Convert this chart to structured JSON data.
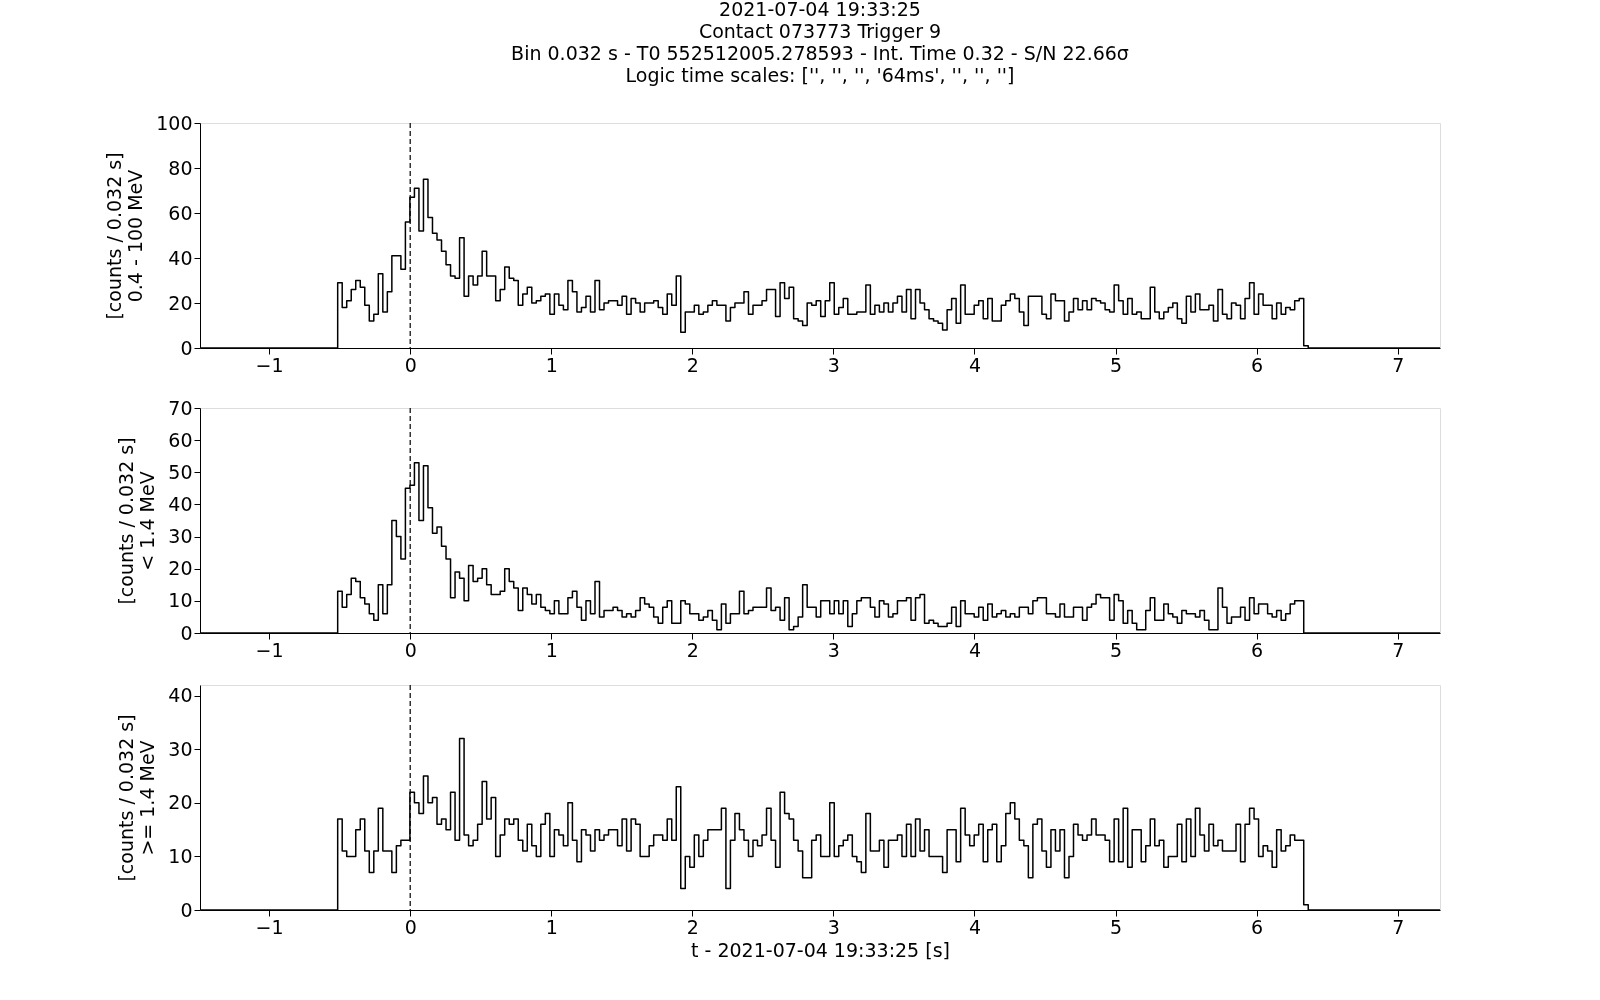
{
  "chart_data": [
    {
      "type": "step",
      "title": "2021-07-04 19:33:25\nContact 073773   Trigger 9\nBin 0.032 s -  T0 552512005.278593 - Int. Time 0.32 - S/N 22.66σ\nLogic time scales: ['', '', '', '64ms', '', '', '']",
      "ylabel": "[counts / 0.032 s]\n0.4 - 100 MeV",
      "xlim": [
        -1.49,
        7.3
      ],
      "xticks": [
        -1,
        0,
        1,
        2,
        3,
        4,
        5,
        6,
        7
      ],
      "ylim": [
        0,
        100
      ],
      "yticks": [
        0,
        20,
        40,
        60,
        80,
        100
      ],
      "grid": false,
      "line_style": "solid",
      "marker": "none",
      "x": [
        -1.49,
        -0.514,
        -0.482,
        -0.45,
        -0.418,
        -0.386,
        -0.354,
        -0.322,
        -0.29,
        -0.258,
        -0.226,
        -0.194,
        -0.162,
        -0.13,
        -0.098,
        -0.066,
        -0.034,
        -0.002,
        0.03,
        0.062,
        0.094,
        0.126,
        0.158,
        0.19,
        0.222,
        0.254,
        0.286,
        0.318,
        0.35,
        0.382,
        0.414,
        0.446,
        0.478,
        0.51,
        0.542,
        0.574,
        0.606,
        0.638,
        0.67,
        0.702,
        0.734,
        0.766,
        0.798,
        0.83,
        0.862,
        0.894,
        0.926,
        0.958,
        0.99,
        1.022,
        1.054,
        1.086,
        1.118,
        1.15,
        1.182,
        1.214,
        1.246,
        1.278,
        1.31,
        1.342,
        1.374,
        1.406,
        1.438,
        1.47,
        1.502,
        1.534,
        1.566,
        1.598,
        1.63,
        1.662,
        1.694,
        1.726,
        1.758,
        1.79,
        1.822,
        1.854,
        1.886,
        1.918,
        1.95,
        1.982,
        2.014,
        2.046,
        2.078,
        2.11,
        2.142,
        2.174,
        2.206,
        2.238,
        2.27,
        2.302,
        2.334,
        2.366,
        2.398,
        2.43,
        2.462,
        2.494,
        2.526,
        2.558,
        2.59,
        2.622,
        2.654,
        2.686,
        2.718,
        2.75,
        2.782,
        2.814,
        2.846,
        2.878,
        2.91,
        2.942,
        2.974,
        3.006,
        3.038,
        3.07,
        3.102,
        3.134,
        3.166,
        3.198,
        3.23,
        3.262,
        3.294,
        3.326,
        3.358,
        3.39,
        3.422,
        3.454,
        3.486,
        3.518,
        3.55,
        3.582,
        3.614,
        3.646,
        3.678,
        3.71,
        3.742,
        3.774,
        3.806,
        3.838,
        3.87,
        3.902,
        3.934,
        3.966,
        3.998,
        4.03,
        4.062,
        4.094,
        4.126,
        4.158,
        4.19,
        4.222,
        4.254,
        4.286,
        4.318,
        4.35,
        4.382,
        4.414,
        4.446,
        4.478,
        4.51,
        4.542,
        4.574,
        4.606,
        4.638,
        4.67,
        4.702,
        4.734,
        4.766,
        4.798,
        4.83,
        4.862,
        4.894,
        4.926,
        4.958,
        4.99,
        5.022,
        5.054,
        5.086,
        5.118,
        5.15,
        5.182,
        5.214,
        5.246,
        5.278,
        5.31,
        5.342,
        5.374,
        5.406,
        5.438,
        5.47,
        5.502,
        5.534,
        5.566,
        5.598,
        5.63,
        5.662,
        5.694,
        5.726,
        5.758,
        5.79,
        5.822,
        5.854,
        5.886,
        5.918,
        5.95,
        5.982,
        6.014,
        6.046,
        6.078,
        6.11,
        6.142,
        6.174,
        6.206,
        6.238,
        6.27,
        6.302,
        6.334,
        6.366,
        7.3
      ],
      "series": [
        {
          "color": "#000000",
          "values": [
            0,
            29,
            18,
            21,
            26,
            30,
            27,
            19,
            12,
            15,
            33,
            16,
            25,
            41,
            41,
            35,
            56,
            67,
            71,
            52,
            75,
            58,
            51,
            48,
            43,
            37,
            32,
            31,
            49,
            23,
            32,
            28,
            32,
            43,
            32,
            32,
            21,
            26,
            36,
            31,
            30,
            19,
            24,
            27,
            20,
            21,
            23,
            24,
            15,
            24,
            19,
            17,
            30,
            25,
            16,
            18,
            23,
            16,
            30,
            17,
            20,
            21,
            21,
            19,
            23,
            15,
            22,
            20,
            16,
            20,
            20,
            21,
            18,
            15,
            24,
            19,
            32,
            7,
            16,
            16,
            19,
            15,
            16,
            19,
            21,
            19,
            19,
            12,
            18,
            20,
            20,
            25,
            15,
            19,
            19,
            21,
            26,
            26,
            14,
            29,
            22,
            27,
            13,
            12,
            10,
            20,
            19,
            21,
            14,
            21,
            29,
            15,
            18,
            22,
            15,
            15,
            16,
            16,
            28,
            15,
            19,
            16,
            20,
            16,
            20,
            23,
            16,
            26,
            13,
            26,
            20,
            17,
            13,
            12,
            11,
            8,
            17,
            22,
            11,
            28,
            15,
            15,
            19,
            21,
            13,
            22,
            12,
            12,
            19,
            21,
            24,
            22,
            16,
            10,
            23,
            23,
            23,
            15,
            13,
            24,
            21,
            21,
            12,
            16,
            22,
            17,
            21,
            17,
            22,
            21,
            20,
            17,
            16,
            28,
            21,
            15,
            22,
            15,
            16,
            13,
            13,
            27,
            16,
            13,
            16,
            18,
            20,
            13,
            11,
            23,
            16,
            24,
            17,
            17,
            19,
            12,
            26,
            15,
            13,
            20,
            19,
            13,
            22,
            29,
            15,
            24,
            19,
            19,
            13,
            20,
            15,
            18,
            17,
            21,
            22,
            1,
            0,
            0
          ]
        }
      ],
      "ref_lines": [
        {
          "axis": "x",
          "value": 0,
          "color": "#000000",
          "line_style": "dashed"
        }
      ]
    },
    {
      "type": "step",
      "ylabel": "[counts / 0.032 s]\n< 1.4 MeV",
      "xlim": [
        -1.49,
        7.3
      ],
      "xticks": [
        -1,
        0,
        1,
        2,
        3,
        4,
        5,
        6,
        7
      ],
      "ylim": [
        0,
        70
      ],
      "yticks": [
        0,
        10,
        20,
        30,
        40,
        50,
        60,
        70
      ],
      "grid": false,
      "line_style": "solid",
      "marker": "none",
      "x": [
        -1.49,
        -0.514,
        -0.482,
        -0.45,
        -0.418,
        -0.386,
        -0.354,
        -0.322,
        -0.29,
        -0.258,
        -0.226,
        -0.194,
        -0.162,
        -0.13,
        -0.098,
        -0.066,
        -0.034,
        -0.002,
        0.03,
        0.062,
        0.094,
        0.126,
        0.158,
        0.19,
        0.222,
        0.254,
        0.286,
        0.318,
        0.35,
        0.382,
        0.414,
        0.446,
        0.478,
        0.51,
        0.542,
        0.574,
        0.606,
        0.638,
        0.67,
        0.702,
        0.734,
        0.766,
        0.798,
        0.83,
        0.862,
        0.894,
        0.926,
        0.958,
        0.99,
        1.022,
        1.054,
        1.086,
        1.118,
        1.15,
        1.182,
        1.214,
        1.246,
        1.278,
        1.31,
        1.342,
        1.374,
        1.406,
        1.438,
        1.47,
        1.502,
        1.534,
        1.566,
        1.598,
        1.63,
        1.662,
        1.694,
        1.726,
        1.758,
        1.79,
        1.822,
        1.854,
        1.886,
        1.918,
        1.95,
        1.982,
        2.014,
        2.046,
        2.078,
        2.11,
        2.142,
        2.174,
        2.206,
        2.238,
        2.27,
        2.302,
        2.334,
        2.366,
        2.398,
        2.43,
        2.462,
        2.494,
        2.526,
        2.558,
        2.59,
        2.622,
        2.654,
        2.686,
        2.718,
        2.75,
        2.782,
        2.814,
        2.846,
        2.878,
        2.91,
        2.942,
        2.974,
        3.006,
        3.038,
        3.07,
        3.102,
        3.134,
        3.166,
        3.198,
        3.23,
        3.262,
        3.294,
        3.326,
        3.358,
        3.39,
        3.422,
        3.454,
        3.486,
        3.518,
        3.55,
        3.582,
        3.614,
        3.646,
        3.678,
        3.71,
        3.742,
        3.774,
        3.806,
        3.838,
        3.87,
        3.902,
        3.934,
        3.966,
        3.998,
        4.03,
        4.062,
        4.094,
        4.126,
        4.158,
        4.19,
        4.222,
        4.254,
        4.286,
        4.318,
        4.35,
        4.382,
        4.414,
        4.446,
        4.478,
        4.51,
        4.542,
        4.574,
        4.606,
        4.638,
        4.67,
        4.702,
        4.734,
        4.766,
        4.798,
        4.83,
        4.862,
        4.894,
        4.926,
        4.958,
        4.99,
        5.022,
        5.054,
        5.086,
        5.118,
        5.15,
        5.182,
        5.214,
        5.246,
        5.278,
        5.31,
        5.342,
        5.374,
        5.406,
        5.438,
        5.47,
        5.502,
        5.534,
        5.566,
        5.598,
        5.63,
        5.662,
        5.694,
        5.726,
        5.758,
        5.79,
        5.822,
        5.854,
        5.886,
        5.918,
        5.95,
        5.982,
        6.014,
        6.046,
        6.078,
        6.11,
        6.142,
        6.174,
        6.206,
        6.238,
        6.27,
        6.302,
        6.334,
        7.3
      ],
      "series": [
        {
          "color": "#000000",
          "values": [
            0,
            13,
            8,
            12,
            17,
            16,
            11,
            9,
            6,
            4,
            15,
            6,
            15,
            35,
            30,
            23,
            45,
            46,
            53,
            35,
            52,
            39,
            31,
            33,
            27,
            23,
            11,
            19,
            17,
            10,
            21,
            16,
            17,
            20,
            15,
            12,
            12,
            13,
            20,
            16,
            14,
            7,
            14,
            12,
            9,
            12,
            8,
            7,
            6,
            10,
            6,
            6,
            11,
            13,
            8,
            4,
            10,
            6,
            16,
            5,
            7,
            7,
            8,
            7,
            5,
            6,
            5,
            7,
            11,
            9,
            8,
            5,
            3,
            8,
            10,
            3,
            3,
            10,
            9,
            6,
            6,
            4,
            5,
            7,
            4,
            1,
            9,
            3,
            6,
            6,
            13,
            6,
            7,
            8,
            8,
            8,
            14,
            7,
            8,
            4,
            11,
            1,
            2,
            5,
            15,
            8,
            8,
            5,
            10,
            10,
            6,
            10,
            6,
            10,
            2,
            6,
            10,
            11,
            11,
            8,
            5,
            10,
            9,
            5,
            6,
            10,
            10,
            11,
            4,
            11,
            12,
            3,
            4,
            3,
            2,
            2,
            3,
            8,
            2,
            10,
            6,
            6,
            5,
            8,
            4,
            9,
            5,
            6,
            7,
            5,
            6,
            5,
            8,
            8,
            6,
            10,
            11,
            11,
            6,
            6,
            5,
            9,
            5,
            5,
            8,
            8,
            4,
            8,
            9,
            12,
            11,
            11,
            4,
            12,
            10,
            3,
            7,
            3,
            1,
            1,
            7,
            11,
            4,
            4,
            9,
            6,
            5,
            3,
            7,
            6,
            6,
            5,
            7,
            4,
            1,
            1,
            14,
            8,
            3,
            5,
            5,
            8,
            4,
            11,
            6,
            9,
            9,
            6,
            5,
            7,
            4,
            6,
            9,
            10,
            10,
            0,
            0
          ]
        }
      ],
      "ref_lines": [
        {
          "axis": "x",
          "value": 0,
          "color": "#000000",
          "line_style": "dashed"
        }
      ]
    },
    {
      "type": "step",
      "xlabel": "t - 2021-07-04 19:33:25 [s]",
      "ylabel": "[counts / 0.032 s]\n>= 1.4 MeV",
      "xlim": [
        -1.49,
        7.3
      ],
      "xticks": [
        -1,
        0,
        1,
        2,
        3,
        4,
        5,
        6,
        7
      ],
      "ylim": [
        0,
        42
      ],
      "yticks": [
        0,
        10,
        20,
        30,
        40
      ],
      "grid": false,
      "line_style": "solid",
      "marker": "none",
      "x": [
        -1.49,
        -0.514,
        -0.482,
        -0.45,
        -0.418,
        -0.386,
        -0.354,
        -0.322,
        -0.29,
        -0.258,
        -0.226,
        -0.194,
        -0.162,
        -0.13,
        -0.098,
        -0.066,
        -0.034,
        -0.002,
        0.03,
        0.062,
        0.094,
        0.126,
        0.158,
        0.19,
        0.222,
        0.254,
        0.286,
        0.318,
        0.35,
        0.382,
        0.414,
        0.446,
        0.478,
        0.51,
        0.542,
        0.574,
        0.606,
        0.638,
        0.67,
        0.702,
        0.734,
        0.766,
        0.798,
        0.83,
        0.862,
        0.894,
        0.926,
        0.958,
        0.99,
        1.022,
        1.054,
        1.086,
        1.118,
        1.15,
        1.182,
        1.214,
        1.246,
        1.278,
        1.31,
        1.342,
        1.374,
        1.406,
        1.438,
        1.47,
        1.502,
        1.534,
        1.566,
        1.598,
        1.63,
        1.662,
        1.694,
        1.726,
        1.758,
        1.79,
        1.822,
        1.854,
        1.886,
        1.918,
        1.95,
        1.982,
        2.014,
        2.046,
        2.078,
        2.11,
        2.142,
        2.174,
        2.206,
        2.238,
        2.27,
        2.302,
        2.334,
        2.366,
        2.398,
        2.43,
        2.462,
        2.494,
        2.526,
        2.558,
        2.59,
        2.622,
        2.654,
        2.686,
        2.718,
        2.75,
        2.782,
        2.814,
        2.846,
        2.878,
        2.91,
        2.942,
        2.974,
        3.006,
        3.038,
        3.07,
        3.102,
        3.134,
        3.166,
        3.198,
        3.23,
        3.262,
        3.294,
        3.326,
        3.358,
        3.39,
        3.422,
        3.454,
        3.486,
        3.518,
        3.55,
        3.582,
        3.614,
        3.646,
        3.678,
        3.71,
        3.742,
        3.774,
        3.806,
        3.838,
        3.87,
        3.902,
        3.934,
        3.966,
        3.998,
        4.03,
        4.062,
        4.094,
        4.126,
        4.158,
        4.19,
        4.222,
        4.254,
        4.286,
        4.318,
        4.35,
        4.382,
        4.414,
        4.446,
        4.478,
        4.51,
        4.542,
        4.574,
        4.606,
        4.638,
        4.67,
        4.702,
        4.734,
        4.766,
        4.798,
        4.83,
        4.862,
        4.894,
        4.926,
        4.958,
        4.99,
        5.022,
        5.054,
        5.086,
        5.118,
        5.15,
        5.182,
        5.214,
        5.246,
        5.278,
        5.31,
        5.342,
        5.374,
        5.406,
        5.438,
        5.47,
        5.502,
        5.534,
        5.566,
        5.598,
        5.63,
        5.662,
        5.694,
        5.726,
        5.758,
        5.79,
        5.822,
        5.854,
        5.886,
        5.918,
        5.95,
        5.982,
        6.014,
        6.046,
        6.078,
        6.11,
        6.142,
        6.174,
        6.206,
        6.238,
        6.27,
        6.302,
        6.334,
        6.366,
        7.3
      ],
      "series": [
        {
          "color": "#000000",
          "values": [
            0,
            17,
            11,
            10,
            10,
            15,
            17,
            11,
            7,
            11,
            19,
            11,
            11,
            7,
            12,
            13,
            13,
            22,
            20,
            18,
            25,
            20,
            21,
            16,
            17,
            15,
            22,
            13,
            32,
            14,
            12,
            13,
            16,
            24,
            17,
            21,
            10,
            14,
            17,
            16,
            17,
            13,
            11,
            16,
            12,
            10,
            16,
            18,
            10,
            15,
            14,
            12,
            20,
            13,
            9,
            15,
            14,
            11,
            15,
            13,
            14,
            15,
            15,
            12,
            17,
            11,
            17,
            16,
            10,
            10,
            12,
            14,
            14,
            13,
            17,
            13,
            23,
            4,
            10,
            8,
            14,
            10,
            13,
            15,
            15,
            15,
            19,
            4,
            13,
            18,
            15,
            13,
            10,
            13,
            12,
            14,
            19,
            13,
            8,
            22,
            18,
            17,
            13,
            11,
            6,
            6,
            13,
            14,
            10,
            10,
            20,
            10,
            12,
            13,
            14,
            10,
            9,
            7,
            18,
            11,
            11,
            13,
            8,
            13,
            13,
            14,
            10,
            16,
            10,
            17,
            11,
            15,
            10,
            10,
            10,
            7,
            15,
            15,
            9,
            19,
            14,
            12,
            14,
            16,
            9,
            15,
            16,
            9,
            12,
            18,
            20,
            17,
            13,
            12,
            6,
            16,
            17,
            11,
            8,
            15,
            11,
            15,
            6,
            10,
            16,
            14,
            13,
            14,
            17,
            14,
            14,
            13,
            9,
            17,
            9,
            19,
            8,
            15,
            15,
            9,
            12,
            17,
            12,
            13,
            8,
            10,
            10,
            16,
            9,
            17,
            10,
            19,
            14,
            11,
            16,
            12,
            13,
            11,
            11,
            11,
            16,
            9,
            16,
            19,
            17,
            10,
            12,
            11,
            8,
            15,
            11,
            12,
            14,
            13,
            13,
            1,
            0,
            0
          ]
        }
      ],
      "ref_lines": [
        {
          "axis": "x",
          "value": 0,
          "color": "#000000",
          "line_style": "dashed"
        }
      ]
    }
  ]
}
